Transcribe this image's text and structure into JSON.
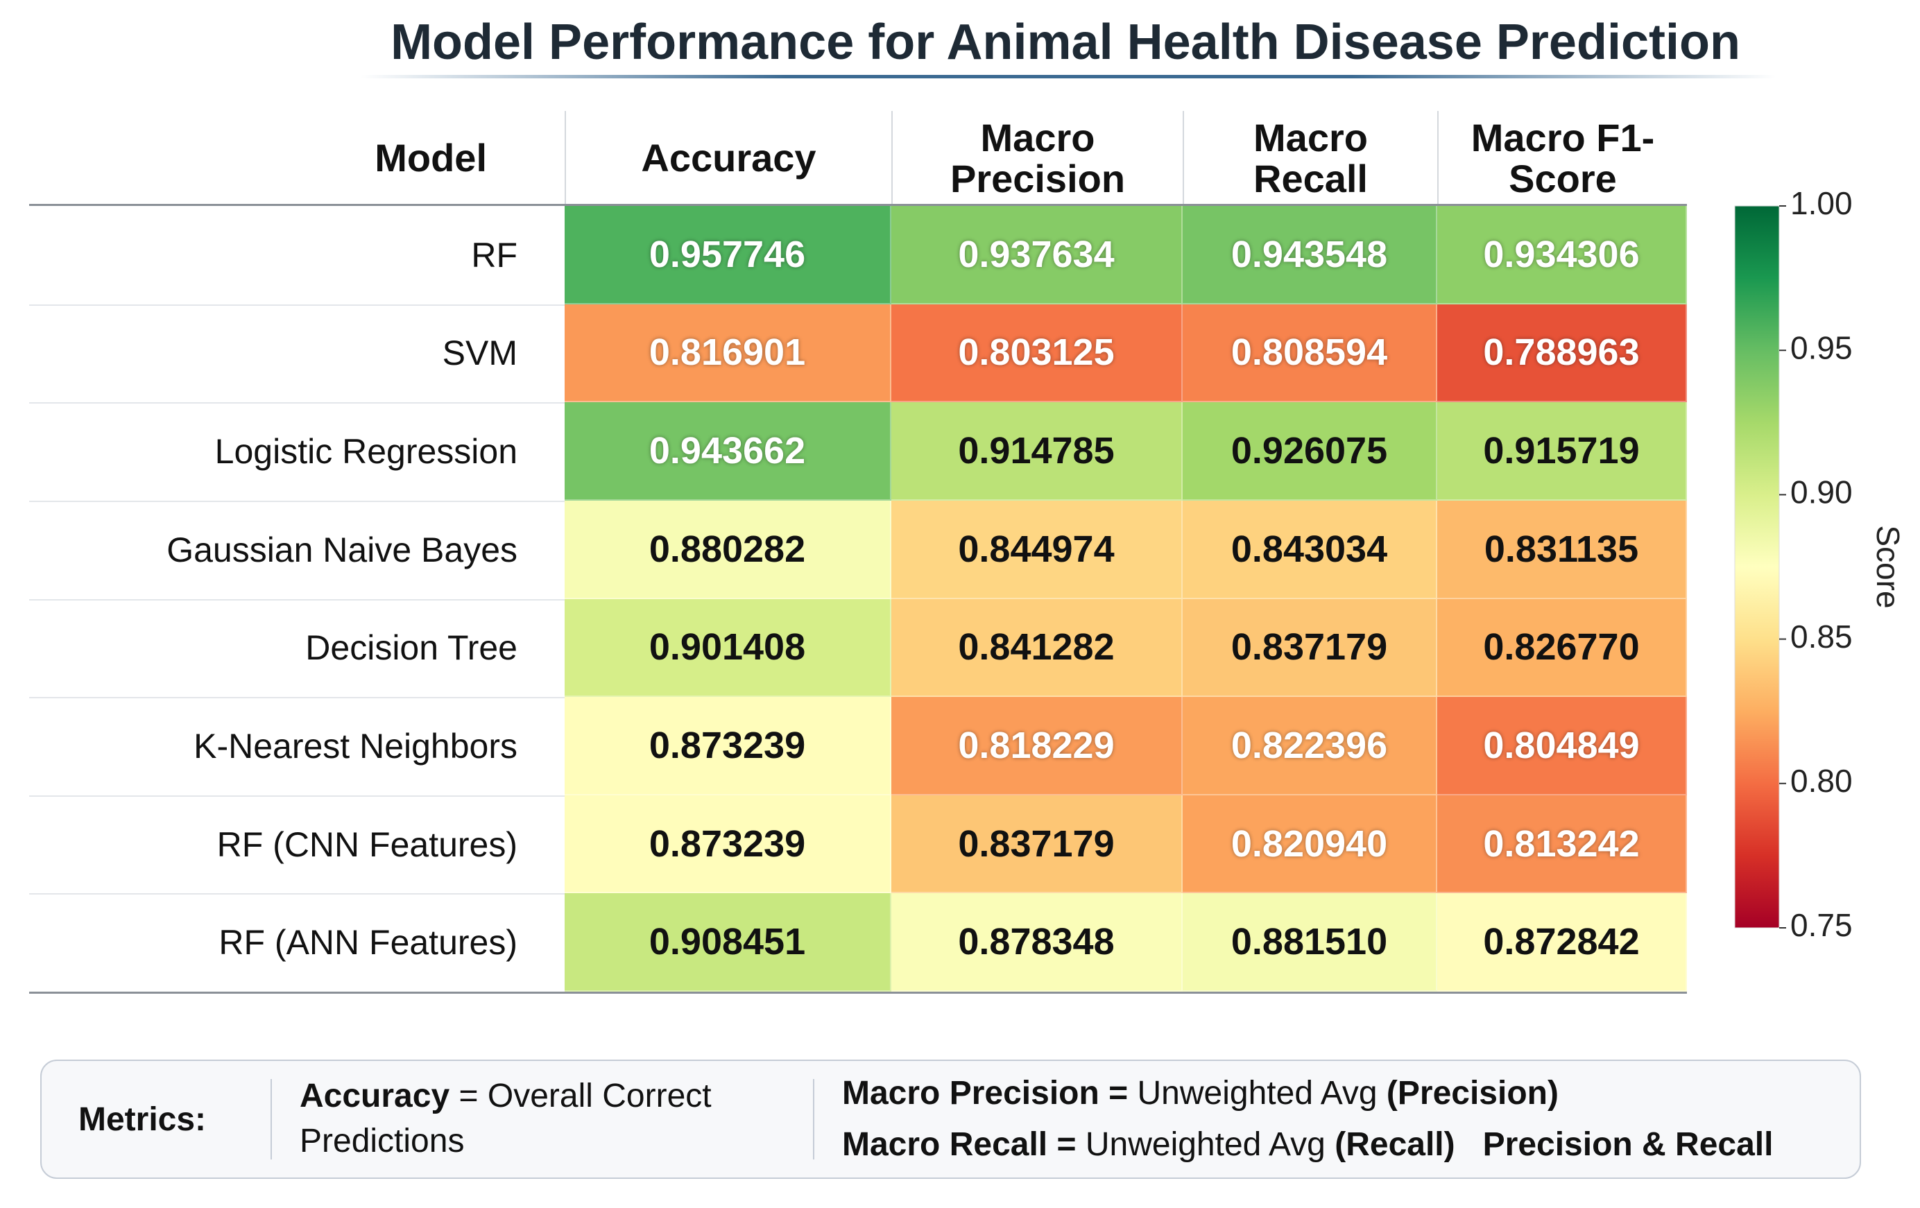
{
  "chart_data": {
    "type": "heatmap",
    "title": "Model Performance for Animal Health Disease Prediction",
    "row_header": "Model",
    "columns": [
      "Accuracy",
      "Macro Precision",
      "Macro Recall",
      "Macro F1-Score"
    ],
    "rows": [
      "RF",
      "SVM",
      "Logistic Regression",
      "Gaussian Naive Bayes",
      "Decision Tree",
      "K-Nearest Neighbors",
      "RF (CNN Features)",
      "RF (ANN Features)"
    ],
    "values": [
      [
        0.957746,
        0.937634,
        0.943548,
        0.934306
      ],
      [
        0.816901,
        0.803125,
        0.808594,
        0.788963
      ],
      [
        0.943662,
        0.914785,
        0.926075,
        0.915719
      ],
      [
        0.880282,
        0.844974,
        0.843034,
        0.831135
      ],
      [
        0.901408,
        0.841282,
        0.837179,
        0.82677
      ],
      [
        0.873239,
        0.818229,
        0.822396,
        0.804849
      ],
      [
        0.873239,
        0.837179,
        0.82094,
        0.813242
      ],
      [
        0.908451,
        0.878348,
        0.88151,
        0.872842
      ]
    ],
    "value_labels": [
      [
        "0.957746",
        "0.937634",
        "0.943548",
        "0.934306"
      ],
      [
        "0.816901",
        "0.803125",
        "0.808594",
        "0.788963"
      ],
      [
        "0.943662",
        "0.914785",
        "0.926075",
        "0.915719"
      ],
      [
        "0.880282",
        "0.844974",
        "0.843034",
        "0.831135"
      ],
      [
        "0.901408",
        "0.841282",
        "0.837179",
        "0.826770"
      ],
      [
        "0.873239",
        "0.818229",
        "0.822396",
        "0.804849"
      ],
      [
        "0.873239",
        "0.837179",
        "0.820940",
        "0.813242"
      ],
      [
        "0.908451",
        "0.878348",
        "0.881510",
        "0.872842"
      ]
    ],
    "colors": [
      "#a50026",
      "#d73027",
      "#f46d43",
      "#fdae61",
      "#fee08b",
      "#ffffbf",
      "#d9ef8b",
      "#a6d96a",
      "#66bd63",
      "#1a9850",
      "#006837"
    ],
    "zlim": [
      0.75,
      1.0
    ],
    "zticks": [
      {
        "value": 1.0,
        "label": "1.00"
      },
      0.95,
      {
        "value": 0.9,
        "label": "0.90"
      },
      0.85,
      {
        "value": 0.8,
        "label": "0.80"
      },
      0.75
    ],
    "colorbar_label": "Score"
  },
  "footer": {
    "label": "Metrics:",
    "accuracy": {
      "term": "Accuracy",
      "equals": "=",
      "definition": "Overall Correct Predictions"
    },
    "precision": {
      "term": "Macro Precision =",
      "definition": "Unweighted Avg",
      "note": "(Precision)"
    },
    "recall": {
      "term": "Macro Recall =",
      "definition": "Unweighted Avg",
      "note": "(Recall)",
      "extra": "Precision & Recall"
    }
  }
}
